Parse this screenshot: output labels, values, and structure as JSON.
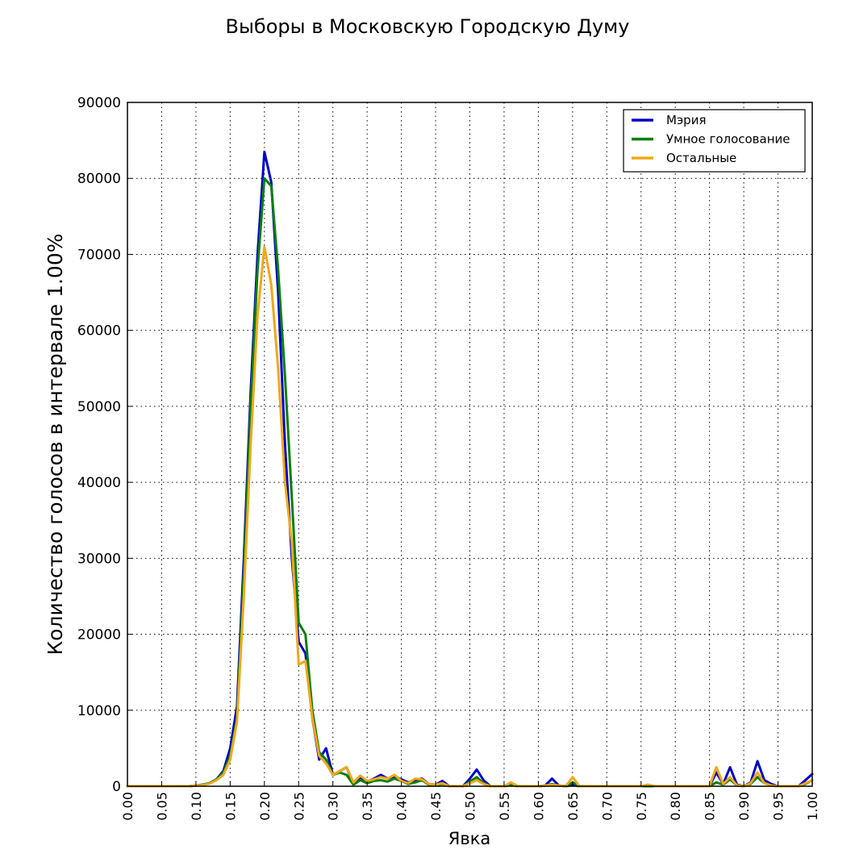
{
  "chart_data": {
    "type": "line",
    "title": "Выборы в Московскую Городскую Думу",
    "xlabel": "Явка",
    "ylabel": "Количество голосов в интервале 1.00%",
    "xlim": [
      0,
      1
    ],
    "ylim": [
      0,
      90000
    ],
    "grid": true,
    "grid_style": "dotted",
    "legend_position": "top-right",
    "x_ticks": [
      "0.00",
      "0.05",
      "0.10",
      "0.15",
      "0.20",
      "0.25",
      "0.30",
      "0.35",
      "0.40",
      "0.45",
      "0.50",
      "0.55",
      "0.60",
      "0.65",
      "0.70",
      "0.75",
      "0.80",
      "0.85",
      "0.90",
      "0.95",
      "1.00"
    ],
    "y_ticks": [
      "0",
      "10000",
      "20000",
      "30000",
      "40000",
      "50000",
      "60000",
      "70000",
      "80000",
      "90000"
    ],
    "x": [
      0.0,
      0.01,
      0.02,
      0.03,
      0.04,
      0.05,
      0.06,
      0.07,
      0.08,
      0.09,
      0.1,
      0.11,
      0.12,
      0.13,
      0.14,
      0.15,
      0.16,
      0.17,
      0.18,
      0.19,
      0.2,
      0.21,
      0.22,
      0.23,
      0.24,
      0.25,
      0.26,
      0.27,
      0.28,
      0.29,
      0.3,
      0.31,
      0.32,
      0.33,
      0.34,
      0.35,
      0.36,
      0.37,
      0.38,
      0.39,
      0.4,
      0.41,
      0.42,
      0.43,
      0.44,
      0.45,
      0.46,
      0.47,
      0.48,
      0.49,
      0.5,
      0.51,
      0.52,
      0.53,
      0.54,
      0.55,
      0.56,
      0.57,
      0.58,
      0.59,
      0.6,
      0.61,
      0.62,
      0.63,
      0.64,
      0.65,
      0.66,
      0.67,
      0.68,
      0.69,
      0.7,
      0.71,
      0.72,
      0.73,
      0.74,
      0.75,
      0.76,
      0.77,
      0.78,
      0.79,
      0.8,
      0.81,
      0.82,
      0.83,
      0.84,
      0.85,
      0.86,
      0.87,
      0.88,
      0.89,
      0.9,
      0.91,
      0.92,
      0.93,
      0.94,
      0.95,
      0.96,
      0.97,
      0.98,
      0.99,
      1.0
    ],
    "series": [
      {
        "name": "Мэрия",
        "color": "#0000cc",
        "values": [
          0,
          0,
          0,
          0,
          0,
          0,
          0,
          0,
          0,
          0,
          100,
          200,
          400,
          900,
          2000,
          5000,
          10500,
          30000,
          52000,
          70000,
          83500,
          79500,
          65000,
          45000,
          30000,
          19000,
          17500,
          9000,
          3500,
          5000,
          1500,
          2000,
          2500,
          300,
          1200,
          600,
          1000,
          1500,
          1000,
          1300,
          900,
          500,
          800,
          1000,
          300,
          200,
          700,
          0,
          0,
          0,
          1000,
          2200,
          800,
          0,
          0,
          0,
          300,
          0,
          0,
          0,
          0,
          100,
          1000,
          100,
          0,
          200,
          0,
          0,
          0,
          0,
          0,
          0,
          0,
          0,
          0,
          0,
          0,
          0,
          0,
          0,
          0,
          0,
          0,
          0,
          0,
          0,
          1800,
          300,
          2500,
          200,
          0,
          500,
          3300,
          800,
          300,
          0,
          0,
          0,
          0,
          800,
          1600
        ]
      },
      {
        "name": "Умное голосование",
        "color": "#0a7f0a",
        "values": [
          0,
          0,
          0,
          0,
          0,
          0,
          0,
          0,
          0,
          0,
          100,
          200,
          400,
          900,
          1800,
          4000,
          9000,
          28000,
          50000,
          68000,
          80000,
          79000,
          68000,
          54000,
          38000,
          21500,
          20000,
          10000,
          4500,
          3500,
          1500,
          1800,
          1500,
          200,
          800,
          400,
          700,
          800,
          600,
          1000,
          700,
          300,
          500,
          800,
          200,
          100,
          300,
          0,
          0,
          0,
          600,
          1200,
          400,
          0,
          0,
          0,
          200,
          0,
          0,
          0,
          0,
          100,
          300,
          100,
          0,
          500,
          0,
          0,
          0,
          0,
          0,
          0,
          0,
          0,
          0,
          0,
          0,
          0,
          0,
          0,
          0,
          0,
          0,
          0,
          0,
          0,
          500,
          200,
          900,
          100,
          0,
          300,
          1200,
          400,
          100,
          0,
          0,
          0,
          0,
          300,
          800
        ]
      },
      {
        "name": "Остальные",
        "color": "#f0a818",
        "values": [
          0,
          0,
          0,
          0,
          0,
          0,
          0,
          0,
          0,
          0,
          100,
          150,
          350,
          800,
          1500,
          3500,
          8500,
          25000,
          45000,
          62000,
          71000,
          66000,
          55000,
          40000,
          32000,
          16000,
          16500,
          9000,
          4000,
          3000,
          1500,
          2000,
          2500,
          500,
          1400,
          700,
          900,
          1200,
          1000,
          1500,
          700,
          400,
          1000,
          900,
          300,
          200,
          400,
          0,
          0,
          0,
          400,
          800,
          300,
          0,
          0,
          0,
          500,
          0,
          0,
          0,
          0,
          100,
          200,
          100,
          0,
          1200,
          0,
          0,
          0,
          0,
          0,
          0,
          0,
          0,
          0,
          0,
          200,
          0,
          0,
          0,
          0,
          0,
          0,
          0,
          0,
          0,
          2500,
          300,
          1200,
          100,
          0,
          400,
          1800,
          400,
          100,
          0,
          0,
          0,
          0,
          400,
          800
        ]
      }
    ]
  }
}
